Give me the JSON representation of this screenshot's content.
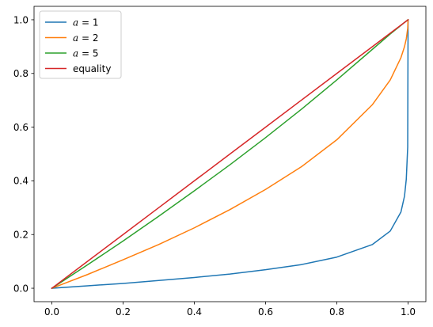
{
  "chart_data": {
    "type": "line",
    "title": "",
    "xlabel": "",
    "ylabel": "",
    "xlim": [
      -0.05,
      1.05
    ],
    "ylim": [
      -0.05,
      1.05
    ],
    "x_ticks": [
      0.0,
      0.2,
      0.4,
      0.6,
      0.8,
      1.0
    ],
    "y_ticks": [
      0.0,
      0.2,
      0.4,
      0.6,
      0.8,
      1.0
    ],
    "x_tick_labels": [
      "0.0",
      "0.2",
      "0.4",
      "0.6",
      "0.8",
      "1.0"
    ],
    "y_tick_labels": [
      "0.0",
      "0.2",
      "0.4",
      "0.6",
      "0.8",
      "1.0"
    ],
    "grid": false,
    "legend_placement": "upper-left",
    "x": [
      0,
      0.1,
      0.2,
      0.3,
      0.4,
      0.5,
      0.6,
      0.7,
      0.8,
      0.9,
      0.95,
      0.98,
      0.99,
      0.995,
      0.999,
      1.0
    ],
    "series": [
      {
        "name": "a = 1",
        "legend_var": "a",
        "legend_value": "1",
        "color": "#1f77b4",
        "values": [
          0,
          0.009,
          0.018,
          0.029,
          0.04,
          0.053,
          0.069,
          0.088,
          0.116,
          0.163,
          0.213,
          0.284,
          0.343,
          0.406,
          0.526,
          1.0
        ]
      },
      {
        "name": "a = 2",
        "legend_var": "a",
        "legend_value": "2",
        "color": "#ff7f0e",
        "values": [
          0,
          0.051,
          0.106,
          0.163,
          0.225,
          0.293,
          0.368,
          0.452,
          0.553,
          0.684,
          0.776,
          0.859,
          0.9,
          0.929,
          0.968,
          1.0
        ]
      },
      {
        "name": "a = 5",
        "legend_var": "a",
        "legend_value": "5",
        "color": "#2ca02c",
        "values": [
          0,
          0.087,
          0.176,
          0.268,
          0.363,
          0.46,
          0.561,
          0.666,
          0.776,
          0.89,
          0.947,
          0.979,
          0.99,
          0.995,
          0.999,
          1.0
        ]
      },
      {
        "name": "equality",
        "legend_label": "equality",
        "color": "#d62728",
        "values": [
          0,
          0.1,
          0.2,
          0.3,
          0.4,
          0.5,
          0.6,
          0.7,
          0.8,
          0.9,
          0.95,
          0.98,
          0.99,
          0.995,
          0.999,
          1.0
        ]
      }
    ]
  }
}
